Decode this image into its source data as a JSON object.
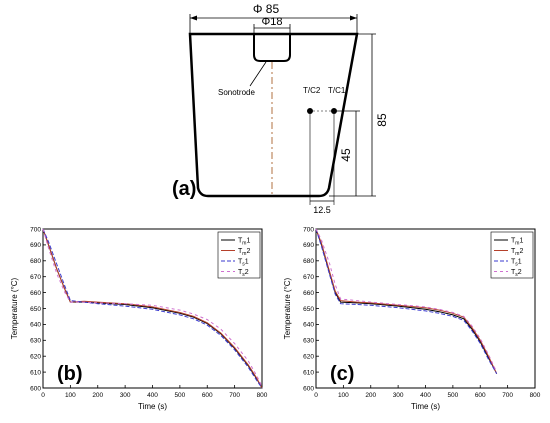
{
  "schematic": {
    "label": "(a)",
    "dims": {
      "top_diameter": "Φ 85",
      "sonotrode_diameter": "Φ18",
      "height_total": "85",
      "tc_height": "45",
      "tc_offset": "12.5"
    },
    "labels": {
      "sonotrode": "Sonotrode",
      "tc2": "T/C2",
      "tc1": "T/C1"
    }
  },
  "chart_data": [
    {
      "type": "line",
      "panel_label": "(b)",
      "xlabel": "Time (s)",
      "ylabel": "Temperature (°C)",
      "xlim": [
        0,
        800
      ],
      "ylim": [
        600,
        700
      ],
      "xticks": [
        0,
        100,
        200,
        300,
        400,
        500,
        600,
        700,
        800
      ],
      "yticks": [
        600,
        610,
        620,
        630,
        640,
        650,
        660,
        670,
        680,
        690,
        700
      ],
      "legend_position": "top-right",
      "series": [
        {
          "name": "Tm1",
          "name_main": "T",
          "name_sub": "m",
          "name_tail": "1",
          "color": "#000000",
          "dash": "solid",
          "x": [
            0,
            20,
            50,
            80,
            100,
            150,
            200,
            300,
            400,
            500,
            550,
            600,
            650,
            700,
            750,
            780,
            800
          ],
          "y": [
            700,
            690,
            675,
            662,
            654,
            654,
            653.5,
            652.5,
            650.5,
            647,
            644.5,
            640.5,
            634,
            625,
            614,
            606,
            600
          ]
        },
        {
          "name": "Tm2",
          "name_main": "T",
          "name_sub": "m",
          "name_tail": "2",
          "color": "#b5402a",
          "dash": "solid",
          "x": [
            0,
            20,
            50,
            80,
            100,
            150,
            200,
            300,
            400,
            500,
            550,
            600,
            650,
            700,
            750,
            780,
            800
          ],
          "y": [
            700,
            690,
            675,
            662,
            654,
            654.5,
            654,
            653,
            651,
            647.5,
            645,
            641,
            634.5,
            625.5,
            614.5,
            606.5,
            600
          ]
        },
        {
          "name": "Ts1",
          "name_main": "T",
          "name_sub": "s",
          "name_tail": "1",
          "color": "#3a3acf",
          "dash": "4,2",
          "x": [
            0,
            20,
            50,
            80,
            100,
            150,
            200,
            300,
            400,
            500,
            550,
            600,
            650,
            700,
            750,
            780,
            800
          ],
          "y": [
            700,
            692,
            678,
            664,
            655,
            654,
            653,
            651.5,
            649.5,
            646,
            643.5,
            639.5,
            633,
            624,
            613,
            605,
            600
          ]
        },
        {
          "name": "Ts2",
          "name_main": "T",
          "name_sub": "s",
          "name_tail": "2",
          "color": "#d070d0",
          "dash": "3,3",
          "x": [
            0,
            20,
            50,
            80,
            100,
            150,
            200,
            300,
            400,
            500,
            550,
            600,
            650,
            700,
            750,
            780,
            800
          ],
          "y": [
            700,
            688,
            672,
            660,
            654,
            654,
            653.5,
            653,
            652,
            649,
            646.5,
            643,
            637,
            628,
            617,
            608,
            601
          ]
        }
      ]
    },
    {
      "type": "line",
      "panel_label": "(c)",
      "xlabel": "Time (s)",
      "ylabel": "Temperature (°C)",
      "xlim": [
        0,
        800
      ],
      "ylim": [
        600,
        700
      ],
      "xticks": [
        0,
        100,
        200,
        300,
        400,
        500,
        600,
        700,
        800
      ],
      "yticks": [
        600,
        610,
        620,
        630,
        640,
        650,
        660,
        670,
        680,
        690,
        700
      ],
      "legend_position": "top-right",
      "series": [
        {
          "name": "Tm1",
          "name_main": "T",
          "name_sub": "m",
          "name_tail": "1",
          "color": "#000000",
          "dash": "solid",
          "x": [
            0,
            20,
            50,
            70,
            90,
            150,
            200,
            300,
            400,
            450,
            500,
            540,
            570,
            600,
            630,
            660
          ],
          "y": [
            700,
            690,
            672,
            660,
            654,
            653.5,
            653,
            651.5,
            649.5,
            648,
            646,
            643.5,
            637,
            629,
            619,
            609
          ]
        },
        {
          "name": "Tm2",
          "name_main": "T",
          "name_sub": "m",
          "name_tail": "2",
          "color": "#b5402a",
          "dash": "solid",
          "x": [
            0,
            20,
            50,
            70,
            90,
            150,
            200,
            300,
            400,
            450,
            500,
            540,
            570,
            600,
            630,
            660
          ],
          "y": [
            700,
            691,
            673,
            661,
            655,
            654,
            653.5,
            652,
            650.5,
            649,
            647,
            644.5,
            638,
            630,
            620,
            609
          ]
        },
        {
          "name": "Ts1",
          "name_main": "T",
          "name_sub": "s",
          "name_tail": "1",
          "color": "#3a3acf",
          "dash": "4,2",
          "x": [
            0,
            20,
            50,
            70,
            90,
            150,
            200,
            300,
            400,
            450,
            500,
            540,
            570,
            600,
            630,
            660
          ],
          "y": [
            700,
            689,
            671,
            659,
            653,
            652.5,
            652,
            650.5,
            648.5,
            647,
            645,
            642.5,
            636,
            628,
            618,
            609
          ]
        },
        {
          "name": "Ts2",
          "name_main": "T",
          "name_sub": "s",
          "name_tail": "2",
          "color": "#d070d0",
          "dash": "3,3",
          "x": [
            0,
            20,
            50,
            70,
            90,
            150,
            200,
            300,
            400,
            450,
            500,
            540,
            570,
            600,
            630,
            660
          ],
          "y": [
            700,
            693,
            678,
            665,
            656,
            655,
            654,
            652.5,
            651,
            649.5,
            647.5,
            645,
            639,
            631,
            621,
            610
          ]
        }
      ]
    }
  ]
}
